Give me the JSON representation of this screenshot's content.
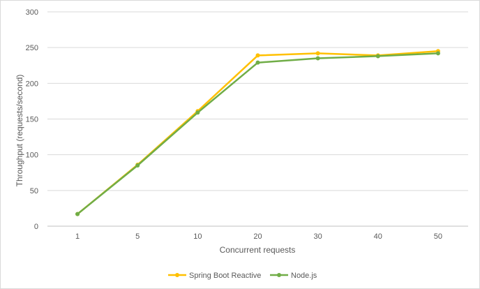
{
  "chart_data": {
    "type": "line",
    "title": "",
    "xlabel": "Concurrent requests",
    "ylabel": "Throughput (requests/second)",
    "categories": [
      "1",
      "5",
      "10",
      "20",
      "30",
      "40",
      "50"
    ],
    "ylim": [
      0,
      300
    ],
    "yticks": [
      "0",
      "50",
      "100",
      "150",
      "200",
      "250",
      "300"
    ],
    "grid": true,
    "legend": "bottom",
    "series": [
      {
        "name": "Spring Boot Reactive",
        "color": "#FFC000",
        "values": [
          17,
          86,
          161,
          239,
          242,
          239,
          245
        ]
      },
      {
        "name": "Node.js",
        "color": "#70AD47",
        "values": [
          17,
          85,
          159,
          229,
          235,
          238,
          242
        ]
      }
    ]
  }
}
